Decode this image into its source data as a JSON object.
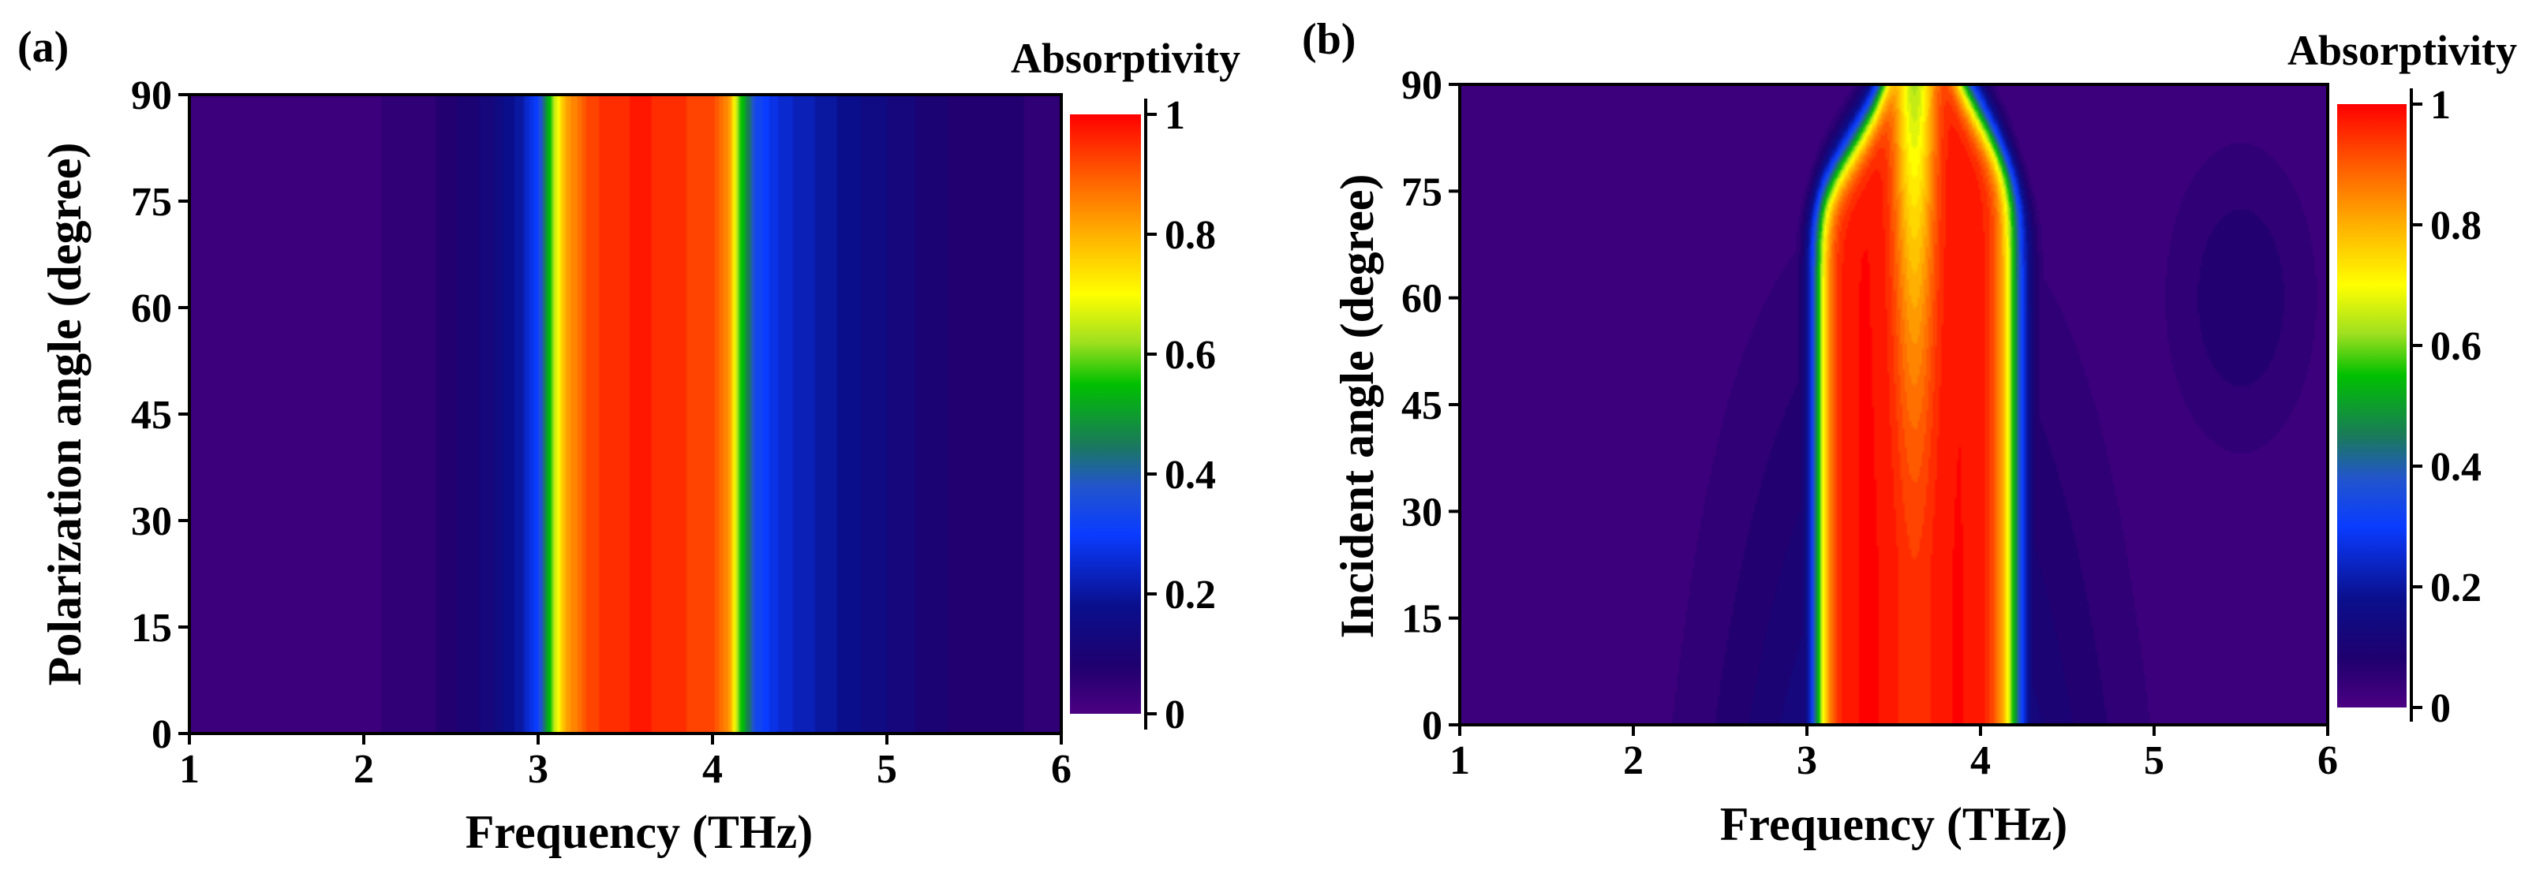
{
  "chart_data": [
    {
      "type": "heatmap",
      "panel_label": "(a)",
      "xlabel": "Frequency (THz)",
      "ylabel": "Polarization angle (degree)",
      "xlim": [
        1,
        6
      ],
      "ylim": [
        0,
        90
      ],
      "x_ticks": [
        "1",
        "2",
        "3",
        "4",
        "5",
        "6"
      ],
      "y_ticks": [
        "0",
        "15",
        "30",
        "45",
        "60",
        "75",
        "90"
      ],
      "colorbar": {
        "title": "Absorptivity",
        "range": [
          0,
          1
        ],
        "ticks": [
          "0",
          "0.2",
          "0.4",
          "0.6",
          "0.8",
          "1"
        ]
      },
      "absorption_profile_vs_frequency": {
        "frequency_THz": [
          1.0,
          2.0,
          2.4,
          2.7,
          2.9,
          3.0,
          3.08,
          3.15,
          3.3,
          3.5,
          3.6,
          3.8,
          4.0,
          4.1,
          4.15,
          4.25,
          4.4,
          4.8,
          5.3,
          6.0
        ],
        "absorptivity": [
          0.02,
          0.03,
          0.06,
          0.12,
          0.2,
          0.32,
          0.6,
          0.8,
          0.93,
          0.96,
          0.97,
          0.94,
          0.93,
          0.82,
          0.6,
          0.33,
          0.25,
          0.17,
          0.09,
          0.05
        ]
      },
      "polarization_dependence": "none"
    },
    {
      "type": "heatmap",
      "panel_label": "(b)",
      "xlabel": "Frequency (THz)",
      "ylabel": "Incident angle (degree)",
      "xlim": [
        1,
        6
      ],
      "ylim": [
        0,
        90
      ],
      "x_ticks": [
        "1",
        "2",
        "3",
        "4",
        "5",
        "6"
      ],
      "y_ticks": [
        "0",
        "15",
        "30",
        "45",
        "60",
        "75",
        "90"
      ],
      "colorbar": {
        "title": "Absorptivity",
        "range": [
          0,
          1
        ],
        "ticks": [
          "0",
          "0.2",
          "0.4",
          "0.6",
          "0.8",
          "1"
        ]
      },
      "absorption_peaks": [
        {
          "frequency_THz": 3.38,
          "peak_absorptivity": 0.99,
          "cutoff_angle_degree": 82
        },
        {
          "frequency_THz": 3.92,
          "peak_absorptivity": 0.99,
          "cutoff_angle_degree": 85
        }
      ],
      "band_edges_THz": [
        3.0,
        4.25
      ],
      "dip_frequency_THz": 3.6
    }
  ]
}
